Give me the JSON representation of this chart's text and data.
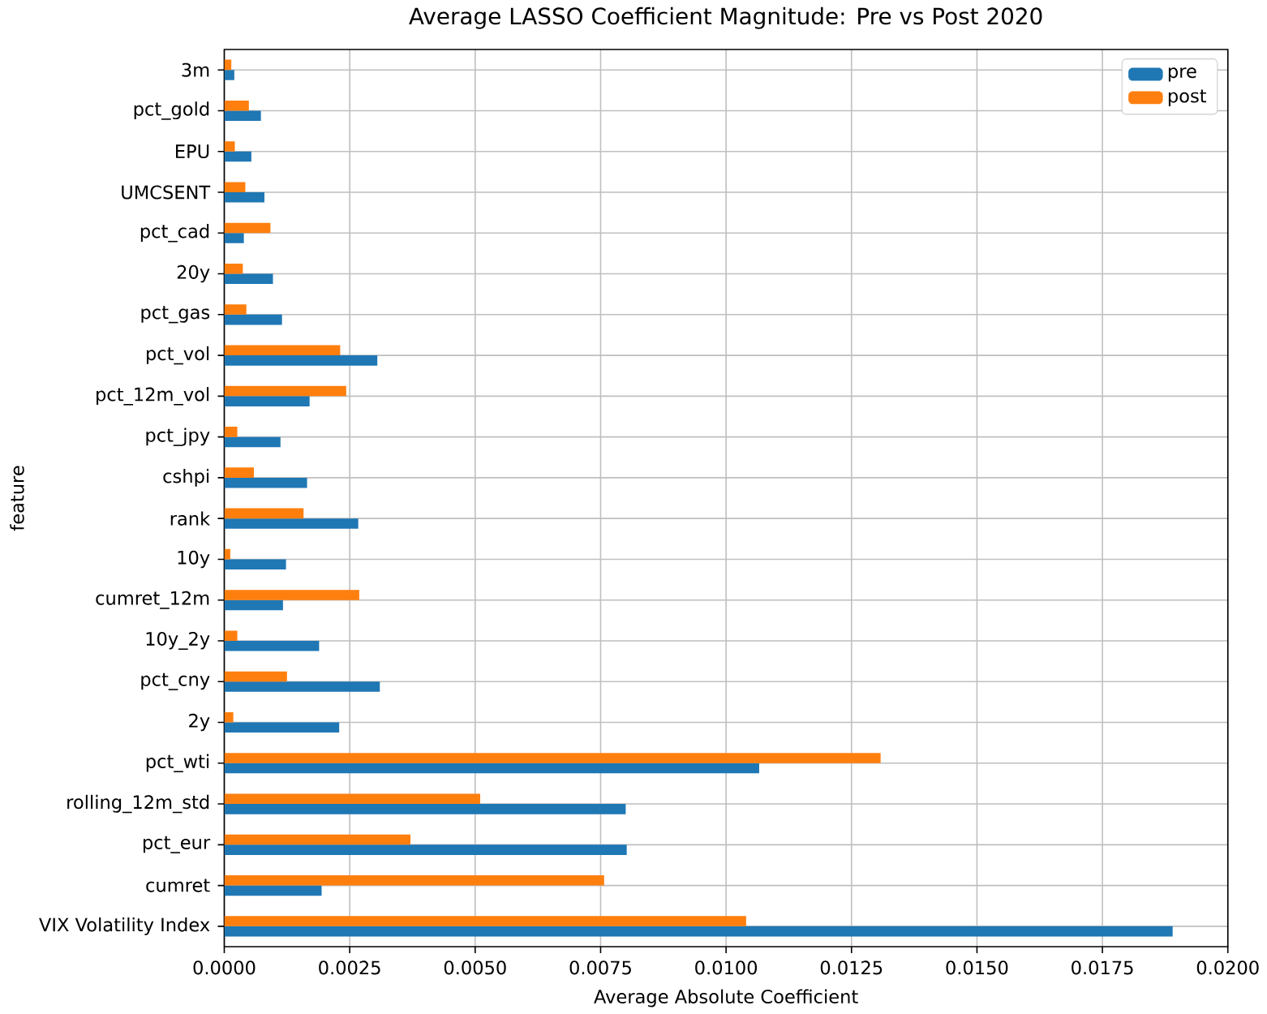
{
  "chart_data": {
    "type": "bar",
    "orientation": "horizontal",
    "title": "Average LASSO Coefficient Magnitude: Pre vs Post 2020",
    "xlabel": "Average Absolute Coefficient",
    "ylabel": "feature",
    "categories": [
      "3m",
      "pct_gold",
      "EPU",
      "UMCSENT",
      "pct_cad",
      "20y",
      "pct_gas",
      "pct_vol",
      "pct_12m_vol",
      "pct_jpy",
      "cshpi",
      "rank",
      "10y",
      "cumret_12m",
      "10y_2y",
      "pct_cny",
      "2y",
      "pct_wti",
      "rolling_12m_std",
      "pct_eur",
      "cumret",
      "VIX Volatility Index"
    ],
    "series": [
      {
        "name": "pre",
        "color": "#1f77b4",
        "values": [
          0.0002,
          0.00073,
          0.00054,
          0.0008,
          0.00039,
          0.00097,
          0.00115,
          0.00305,
          0.0017,
          0.00112,
          0.00165,
          0.00267,
          0.00123,
          0.00117,
          0.00189,
          0.0031,
          0.00229,
          0.01066,
          0.008,
          0.00802,
          0.00194,
          0.0189
        ]
      },
      {
        "name": "post",
        "color": "#ff7f0e",
        "values": [
          0.00014,
          0.00049,
          0.00021,
          0.00042,
          0.00092,
          0.00037,
          0.00044,
          0.00231,
          0.00243,
          0.00026,
          0.00059,
          0.00158,
          0.00012,
          0.00269,
          0.00026,
          0.00125,
          0.00018,
          0.01308,
          0.0051,
          0.00371,
          0.00757,
          0.0104
        ]
      }
    ],
    "xlim": [
      0,
      0.02
    ],
    "xticks": [
      {
        "value": 0,
        "label": "0.0000"
      },
      {
        "value": 0.0025,
        "label": "0.0025"
      },
      {
        "value": 0.005,
        "label": "0.0050"
      },
      {
        "value": 0.0075,
        "label": "0.0075"
      },
      {
        "value": 0.01,
        "label": "0.0100"
      },
      {
        "value": 0.0125,
        "label": "0.0125"
      },
      {
        "value": 0.015,
        "label": "0.0150"
      },
      {
        "value": 0.0175,
        "label": "0.0175"
      },
      {
        "value": 0.02,
        "label": "0.0200"
      }
    ],
    "grid": true,
    "legend": "top right"
  }
}
